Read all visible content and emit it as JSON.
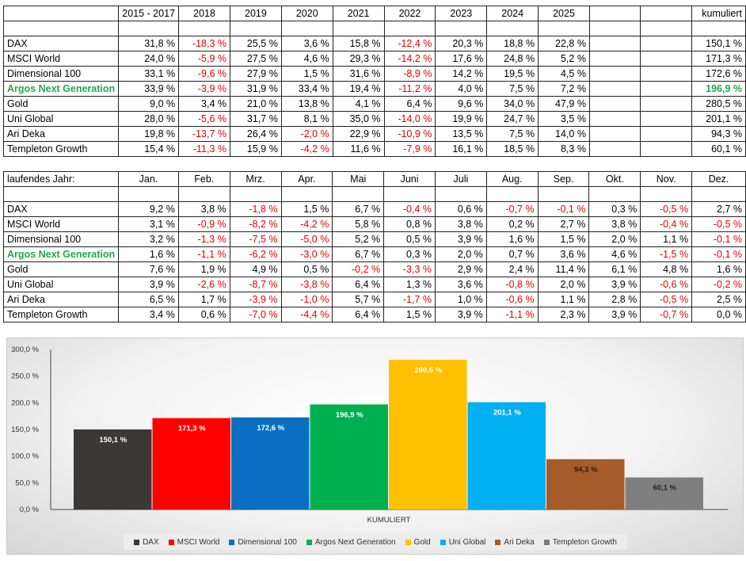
{
  "table1": {
    "headers": [
      "",
      "2015 - 2017",
      "2018",
      "2019",
      "2020",
      "2021",
      "2022",
      "2023",
      "2024",
      "2025",
      "",
      "",
      "kumuliert"
    ],
    "rows": [
      {
        "name": "DAX",
        "values": [
          "31,8 %",
          "-18,3 %",
          "25,5 %",
          "3,6 %",
          "15,8 %",
          "-12,4 %",
          "20,3 %",
          "18,8 %",
          "22,8 %",
          "",
          "",
          "150,1 %"
        ]
      },
      {
        "name": "MSCI World",
        "values": [
          "24,0 %",
          "-5,9 %",
          "27,5 %",
          "4,6 %",
          "29,3 %",
          "-14,2 %",
          "17,6 %",
          "24,8 %",
          "5,2 %",
          "",
          "",
          "171,3 %"
        ]
      },
      {
        "name": "Dimensional 100",
        "values": [
          "33,1 %",
          "-9,6 %",
          "27,9 %",
          "1,5 %",
          "31,6 %",
          "-8,9 %",
          "14,2 %",
          "19,5 %",
          "4,5 %",
          "",
          "",
          "172,6 %"
        ]
      },
      {
        "name": "Argos Next Generation",
        "values": [
          "33,9 %",
          "-3,9 %",
          "31,9 %",
          "33,4 %",
          "19,4 %",
          "-11,2 %",
          "4,0 %",
          "7,5 %",
          "7,2 %",
          "",
          "",
          "196,9 %"
        ]
      },
      {
        "name": "Gold",
        "values": [
          "9,0 %",
          "3,4 %",
          "21,0 %",
          "13,8 %",
          "4,1 %",
          "6,4 %",
          "9,6 %",
          "34,0 %",
          "47,9 %",
          "",
          "",
          "280,5 %"
        ]
      },
      {
        "name": "Uni Global",
        "values": [
          "28,0 %",
          "-5,6 %",
          "31,7 %",
          "8,1 %",
          "35,0 %",
          "-14,0 %",
          "19,9 %",
          "24,7 %",
          "3,5 %",
          "",
          "",
          "201,1 %"
        ]
      },
      {
        "name": "Ari Deka",
        "values": [
          "19,8 %",
          "-13,7 %",
          "26,4 %",
          "-2,0 %",
          "22,9 %",
          "-10,9 %",
          "13,5 %",
          "7,5 %",
          "14,0 %",
          "",
          "",
          "94,3 %"
        ]
      },
      {
        "name": "Templeton Growth",
        "values": [
          "15,4 %",
          "-11,3 %",
          "15,9 %",
          "-4,2 %",
          "11,6 %",
          "-7,9 %",
          "16,1 %",
          "18,5 %",
          "8,3 %",
          "",
          "",
          "60,1 %"
        ]
      }
    ]
  },
  "table2": {
    "headers": [
      "laufendes Jahr:",
      "Jan.",
      "Feb.",
      "Mrz.",
      "Apr.",
      "Mai",
      "Juni",
      "Juli",
      "Aug.",
      "Sep.",
      "Okt.",
      "Nov.",
      "Dez."
    ],
    "rows": [
      {
        "name": "DAX",
        "values": [
          "9,2 %",
          "3,8 %",
          "-1,8 %",
          "1,5 %",
          "6,7 %",
          "-0,4 %",
          "0,6 %",
          "-0,7 %",
          "-0,1 %",
          "0,3 %",
          "-0,5 %",
          "2,7 %"
        ]
      },
      {
        "name": "MSCI World",
        "values": [
          "3,1 %",
          "-0,9 %",
          "-8,2 %",
          "-4,2 %",
          "5,8 %",
          "0,8 %",
          "3,8 %",
          "0,2 %",
          "2,7 %",
          "3,8 %",
          "-0,4 %",
          "-0,5 %"
        ]
      },
      {
        "name": "Dimensional 100",
        "values": [
          "3,2 %",
          "-1,3 %",
          "-7,5 %",
          "-5,0 %",
          "5,2 %",
          "0,5 %",
          "3,9 %",
          "1,6 %",
          "1,5 %",
          "2,0 %",
          "1,1 %",
          "-0,1 %"
        ]
      },
      {
        "name": "Argos Next Generation",
        "values": [
          "1,6 %",
          "-1,1 %",
          "-6,2 %",
          "-3,0 %",
          "6,7 %",
          "0,3 %",
          "2,0 %",
          "0,7 %",
          "3,6 %",
          "4,6 %",
          "-1,5 %",
          "-0,1 %"
        ]
      },
      {
        "name": "Gold",
        "values": [
          "7,6 %",
          "1,9 %",
          "4,9 %",
          "0,5 %",
          "-0,2 %",
          "-3,3 %",
          "2,9 %",
          "2,4 %",
          "11,4 %",
          "6,1 %",
          "4,8 %",
          "1,6 %"
        ]
      },
      {
        "name": "Uni Global",
        "values": [
          "3,9 %",
          "-2,6 %",
          "-8,7 %",
          "-3,8 %",
          "6,4 %",
          "1,3 %",
          "3,6 %",
          "-0,8 %",
          "2,0 %",
          "3,9 %",
          "-0,6 %",
          "-0,2 %"
        ]
      },
      {
        "name": "Ari Deka",
        "values": [
          "6,5 %",
          "1,7 %",
          "-3,9 %",
          "-1,0 %",
          "5,7 %",
          "-1,7 %",
          "1,0 %",
          "-0,6 %",
          "1,1 %",
          "2,8 %",
          "-0,5 %",
          "2,5 %"
        ]
      },
      {
        "name": "Templeton Growth",
        "values": [
          "3,4 %",
          "0,6 %",
          "-7,0 %",
          "-4,4 %",
          "6,4 %",
          "1,5 %",
          "3,9 %",
          "-1,1 %",
          "2,3 %",
          "3,9 %",
          "-0,7 %",
          "0,0 %"
        ]
      }
    ]
  },
  "highlight_row": "Argos Next Generation",
  "colors": {
    "negative": "#e60000",
    "highlight": "#22a84a"
  },
  "chart_data": {
    "type": "bar",
    "categories": [
      "KUMULIERT"
    ],
    "xlabel": "KUMULIERT",
    "ylim": [
      0,
      300
    ],
    "yticks": [
      "0,0 %",
      "50,0 %",
      "100,0 %",
      "150,0 %",
      "200,0 %",
      "250,0 %",
      "300,0 %"
    ],
    "grid": false,
    "legend": "bottom",
    "series": [
      {
        "name": "DAX",
        "value": 150.1,
        "label": "150,1 %",
        "color": "#3b3836"
      },
      {
        "name": "MSCI World",
        "value": 171.3,
        "label": "171,3 %",
        "color": "#ff0000"
      },
      {
        "name": "Dimensional 100",
        "value": 172.6,
        "label": "172,6 %",
        "color": "#0a6fc2"
      },
      {
        "name": "Argos Next Generation",
        "value": 196.9,
        "label": "196,9 %",
        "color": "#00b050"
      },
      {
        "name": "Gold",
        "value": 280.5,
        "label": "280,5 %",
        "color": "#ffc000"
      },
      {
        "name": "Uni Global",
        "value": 201.1,
        "label": "201,1 %",
        "color": "#00b0f0"
      },
      {
        "name": "Ari Deka",
        "value": 94.3,
        "label": "94,3 %",
        "color": "#a65b2a"
      },
      {
        "name": "Templeton Growth",
        "value": 60.1,
        "label": "60,1 %",
        "color": "#7f7f7f"
      }
    ]
  }
}
